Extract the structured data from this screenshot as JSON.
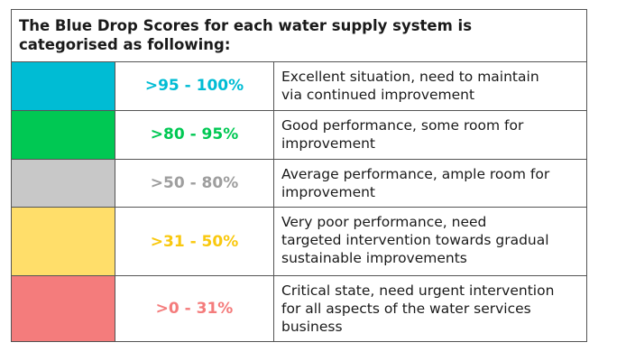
{
  "header": {
    "line1": "The Blue Drop Scores for each water supply system is",
    "line2": "categorised as following:"
  },
  "rows": [
    {
      "range": ">95 - 100%",
      "description": "Excellent situation, need to maintain\nvia continued improvement",
      "swatch_color": "#00BCD4",
      "text_color": "#00BCD4"
    },
    {
      "range": ">80 - 95%",
      "description": "Good performance, some room for\nimprovement",
      "swatch_color": "#00C853",
      "text_color": "#00C853"
    },
    {
      "range": ">50 - 80%",
      "description": "Average performance, ample room for\nimprovement",
      "swatch_color": "#C8C8C8",
      "text_color": "#9E9E9E"
    },
    {
      "range": ">31 - 50%",
      "description": "Very poor performance, need\ntargeted intervention towards gradual\nsustainable improvements",
      "swatch_color": "#FFDE6A",
      "text_color": "#F9C80E"
    },
    {
      "range": ">0 - 31%",
      "description": "Critical state, need urgent intervention\nfor all aspects of the water services\nbusiness",
      "swatch_color": "#F47C7C",
      "text_color": "#F47C7C"
    }
  ]
}
